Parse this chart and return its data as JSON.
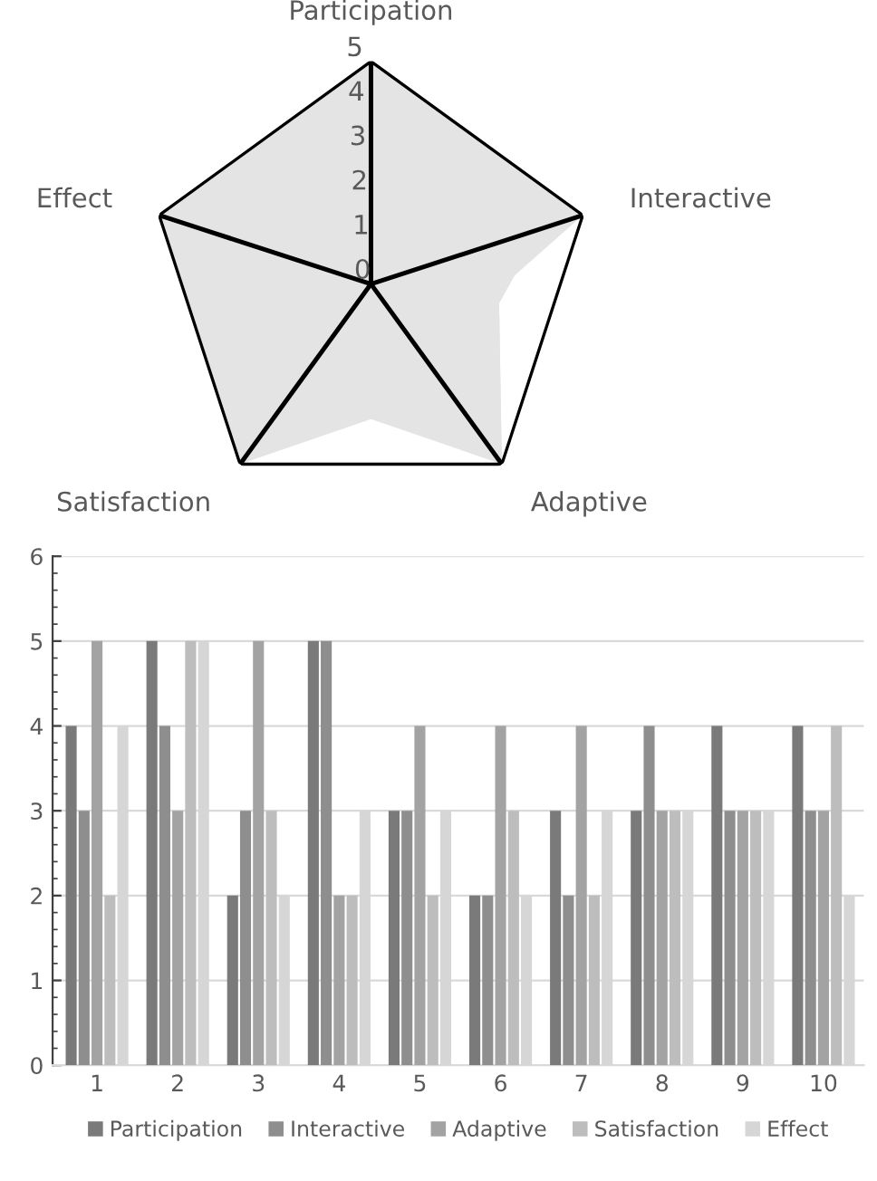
{
  "chart_data": [
    {
      "type": "radar",
      "categories": [
        "Participation",
        "Interactive",
        "Adaptive",
        "Satisfaction",
        "Effect"
      ],
      "ylim": [
        0,
        5
      ],
      "yticks": [
        0,
        1,
        2,
        3,
        4,
        5
      ],
      "grid": "x",
      "legend": false,
      "series": [
        {
          "color": "#e4e4e4",
          "values": [
            4,
            3,
            5,
            2,
            4
          ]
        },
        {
          "color": "#e4e4e4",
          "values": [
            5,
            4,
            3,
            5,
            5
          ]
        },
        {
          "color": "#e4e4e4",
          "values": [
            2,
            3,
            5,
            3,
            2
          ]
        },
        {
          "color": "#e4e4e4",
          "values": [
            5,
            5,
            2,
            2,
            3
          ]
        },
        {
          "color": "#e4e4e4",
          "values": [
            3,
            3,
            4,
            2,
            3
          ]
        },
        {
          "color": "#e4e4e4",
          "values": [
            2,
            2,
            4,
            3,
            2
          ]
        },
        {
          "color": "#e4e4e4",
          "values": [
            3,
            2,
            4,
            2,
            3
          ]
        },
        {
          "color": "#e4e4e4",
          "values": [
            3,
            4,
            3,
            3,
            3
          ]
        },
        {
          "color": "#e4e4e4",
          "values": [
            4,
            3,
            3,
            3,
            3
          ]
        },
        {
          "color": "#e4e4e4",
          "values": [
            4,
            3,
            3,
            4,
            2
          ]
        }
      ]
    },
    {
      "type": "bar",
      "categories": [
        "1",
        "2",
        "3",
        "4",
        "5",
        "6",
        "7",
        "8",
        "9",
        "10"
      ],
      "ylim": [
        0,
        6
      ],
      "yticks": [
        0,
        1,
        2,
        3,
        4,
        5,
        6
      ],
      "grid": "y",
      "legend": "bottom",
      "series": [
        {
          "name": "Participation",
          "color": "#7a7a7a",
          "values": [
            4,
            5,
            2,
            5,
            3,
            2,
            3,
            3,
            4,
            4
          ]
        },
        {
          "name": "Interactive",
          "color": "#8e8e8e",
          "values": [
            3,
            4,
            3,
            5,
            3,
            2,
            2,
            4,
            3,
            3
          ]
        },
        {
          "name": "Adaptive",
          "color": "#a3a3a3",
          "values": [
            5,
            3,
            5,
            2,
            4,
            4,
            4,
            3,
            3,
            3
          ]
        },
        {
          "name": "Satisfaction",
          "color": "#bdbdbd",
          "values": [
            2,
            5,
            3,
            2,
            2,
            3,
            2,
            3,
            3,
            4
          ]
        },
        {
          "name": "Effect",
          "color": "#d6d6d6",
          "values": [
            4,
            5,
            2,
            3,
            3,
            2,
            3,
            3,
            3,
            2
          ]
        }
      ]
    }
  ]
}
